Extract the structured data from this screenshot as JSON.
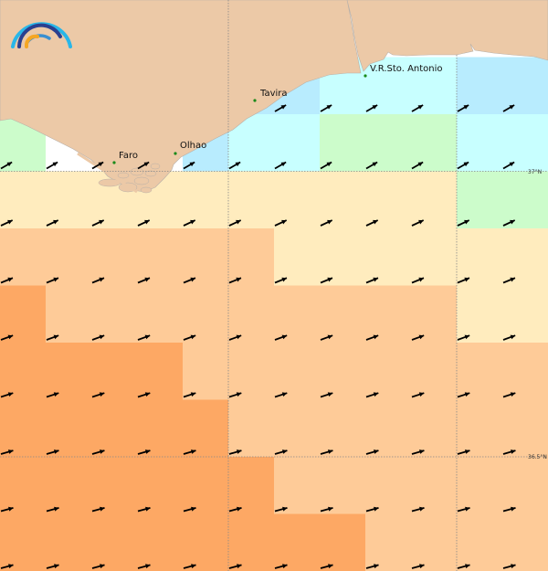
{
  "map": {
    "colors": {
      "land": "#ecc9a7",
      "coast": "#b8b0a8",
      "nodata": "#ffffff",
      "classes": [
        "#ccfccb",
        "#c8ffff",
        "#b8ecfe",
        "#ffecbe",
        "#fecb98",
        "#fda864"
      ]
    },
    "legend_class_codes": {
      "W": "nodata",
      "G": 0,
      "C": 1,
      "B": 2,
      "Y": 3,
      "L": 4,
      "O": 5
    },
    "grid_rows": [
      "WWWWWWWWWWWW",
      "WWWWWBBCCCBB",
      "GWWWBCCGGGCC",
      "YYYYYYYYYYGG",
      "LLLLLLYYYYYY",
      "OLLLLLLLLLYY",
      "OOOOLLLLLLLL",
      "OOOOOLLLLLLL",
      "OOOOOOLLLLLL",
      "OOOOOOOOLLLL"
    ],
    "arrow_angles_deg": [
      30,
      30,
      25,
      22,
      20,
      18,
      16,
      15,
      15
    ],
    "cities": [
      {
        "name": "Faro"
      },
      {
        "name": "Olhao"
      },
      {
        "name": "Tavira"
      },
      {
        "name": "V.R.Sto. Antonio"
      }
    ],
    "graticule_labels": [
      "37°N",
      "36.5°N"
    ],
    "city_dot_color": "#1a8a1a",
    "arrow_color": "#000000",
    "logo_colors": [
      "#29b6e8",
      "#2b3f8f",
      "#3a8fd0",
      "#f5a623"
    ]
  }
}
